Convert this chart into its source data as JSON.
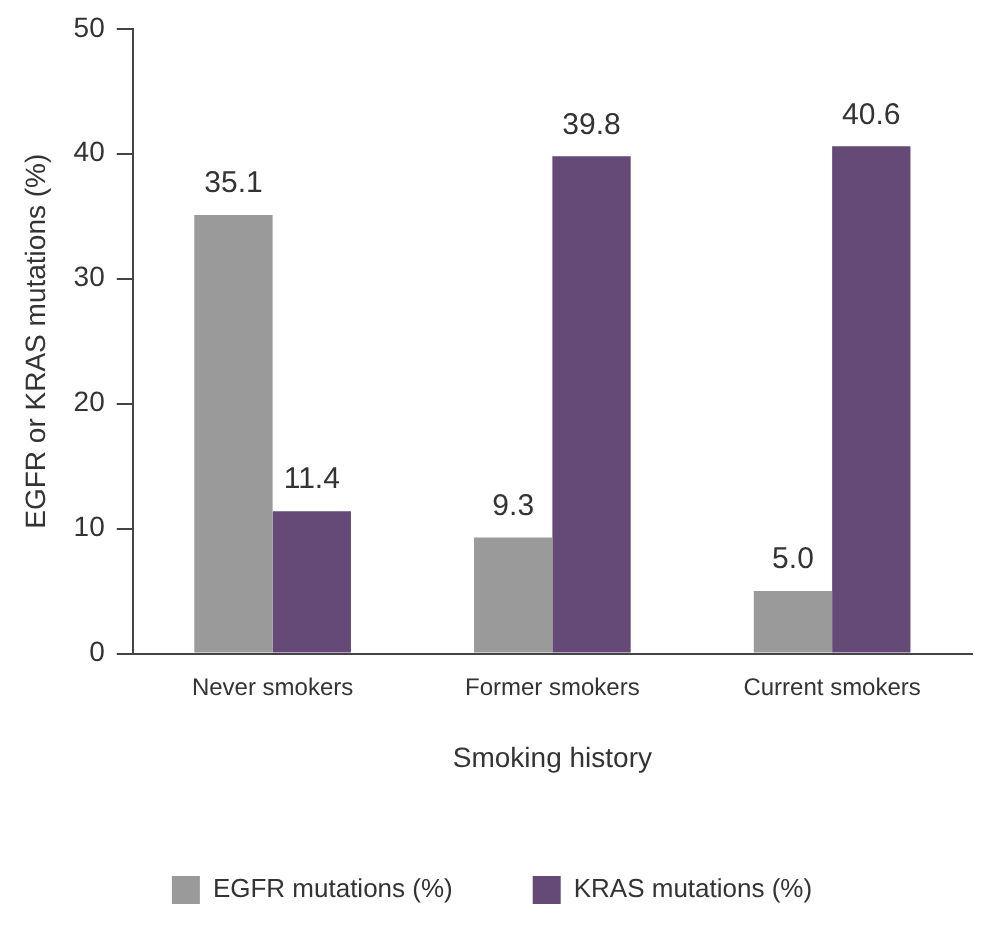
{
  "chart_data": {
    "type": "bar",
    "xlabel": "Smoking history",
    "ylabel": "EGFR or KRAS mutations (%)",
    "categories": [
      "Never smokers",
      "Former smokers",
      "Current smokers"
    ],
    "series": [
      {
        "name": "EGFR mutations (%)",
        "color": "#9a9a9b",
        "values": [
          35.1,
          9.3,
          5.0
        ],
        "value_labels": [
          "35.1",
          "9.3",
          "5.0"
        ]
      },
      {
        "name": "KRAS mutations (%)",
        "color": "#654a78",
        "values": [
          11.4,
          39.8,
          40.6
        ],
        "value_labels": [
          "11.4",
          "39.8",
          "40.6"
        ]
      }
    ],
    "ylim": [
      0,
      50
    ],
    "yticks": [
      0,
      10,
      20,
      30,
      40,
      50
    ],
    "grid": false,
    "legend": "bottom"
  }
}
